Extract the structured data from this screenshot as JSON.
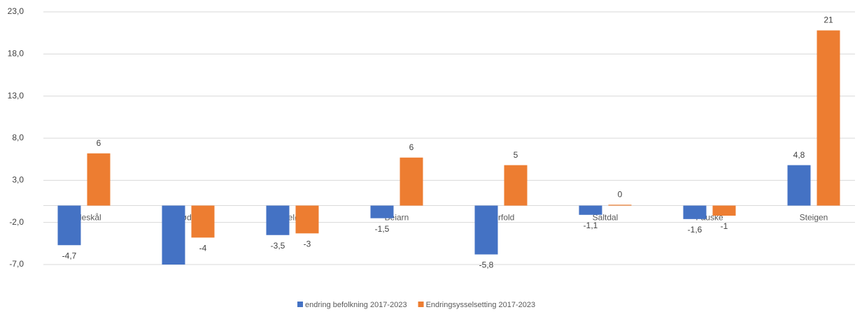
{
  "chart_data": {
    "type": "bar",
    "categories": [
      "Gildeskål",
      "Rødøy",
      "Meløy",
      "Beiarn",
      "Sørfold",
      "Saltdal",
      "Fauske",
      "Steigen"
    ],
    "series": [
      {
        "name": "endring befolkning 2017-2023",
        "color": "#4472c4",
        "values": [
          -4.7,
          -7.0,
          -3.5,
          -1.5,
          -5.8,
          -1.1,
          -1.6,
          4.8
        ],
        "value_labels": [
          "-4,7",
          null,
          "-3,5",
          "-1,5",
          "-5,8",
          "-1,1",
          "-1,6",
          "4,8"
        ]
      },
      {
        "name": "Endringsysselsetting 2017-2023",
        "color": "#ed7d31",
        "values": [
          6.2,
          -3.8,
          -3.3,
          5.7,
          4.8,
          0.1,
          -1.2,
          20.8
        ],
        "value_labels": [
          "6",
          "-4",
          "-3",
          "6",
          "5",
          "0",
          "-1",
          "21"
        ]
      }
    ],
    "ylim": [
      -7,
      23
    ],
    "yticks": [
      {
        "value": 23,
        "label": "23,0"
      },
      {
        "value": 18,
        "label": "18,0"
      },
      {
        "value": 13,
        "label": "13,0"
      },
      {
        "value": 8,
        "label": "8,0"
      },
      {
        "value": 3,
        "label": "3,0"
      },
      {
        "value": -2,
        "label": "-2,0"
      },
      {
        "value": -7,
        "label": "-7,0"
      }
    ],
    "grid": true,
    "legend": "bottom"
  }
}
